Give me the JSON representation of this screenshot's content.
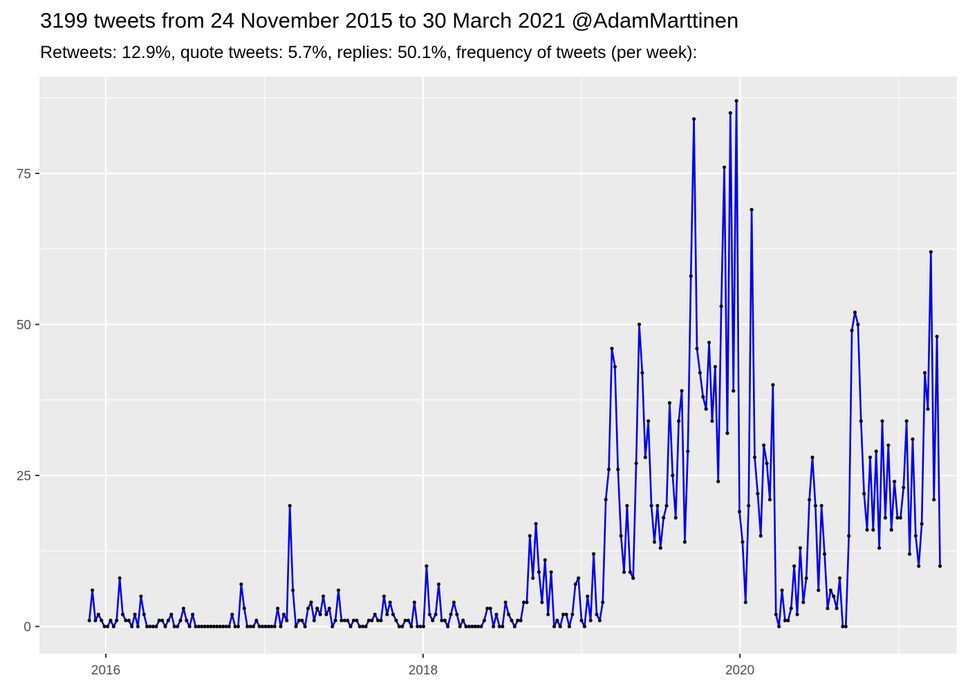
{
  "chart_data": {
    "type": "line",
    "title": "3199 tweets from 24 November 2015 to 30 March 2021 @AdamMarttinen",
    "subtitle": "Retweets: 12.9%, quote tweets: 5.7%, replies: 50.1%, frequency of tweets (per week):",
    "xlabel": "",
    "ylabel": "",
    "x_unit": "date (weekly)",
    "x_start": "2015-11-24",
    "x_step_days": 7,
    "xlim": [
      "2015-08-01",
      "2021-05-15"
    ],
    "ylim": [
      -4.5,
      91
    ],
    "x_ticks": [
      {
        "label": "2016",
        "date": "2016-01-01"
      },
      {
        "label": "2018",
        "date": "2018-01-01"
      },
      {
        "label": "2020",
        "date": "2020-01-01"
      }
    ],
    "x_minor_ticks": [
      "2017-01-01",
      "2019-01-01",
      "2021-01-01"
    ],
    "y_ticks": [
      0,
      25,
      50,
      75
    ],
    "y_minor_ticks": [
      12.5,
      37.5,
      62.5,
      87.5
    ],
    "grid": true,
    "legend": "none",
    "colors": {
      "panel_background": "#ebebeb",
      "grid": "#ffffff",
      "line": "#0000ee",
      "points": "#000000"
    },
    "series": [
      {
        "values": [
          1,
          6,
          1,
          2,
          1,
          0,
          0,
          1,
          0,
          1,
          8,
          2,
          1,
          1,
          0,
          2,
          0,
          5,
          2,
          0,
          0,
          0,
          0,
          1,
          1,
          0,
          1,
          2,
          0,
          0,
          1,
          3,
          1,
          0,
          2,
          0,
          0,
          0,
          0,
          0,
          0,
          0,
          0,
          0,
          0,
          0,
          0,
          2,
          0,
          0,
          7,
          3,
          0,
          0,
          0,
          1,
          0,
          0,
          0,
          0,
          0,
          0,
          3,
          0,
          2,
          1,
          20,
          6,
          0,
          1,
          1,
          0,
          3,
          4,
          1,
          3,
          2,
          5,
          2,
          3,
          0,
          1,
          6,
          1,
          1,
          1,
          0,
          1,
          1,
          0,
          0,
          0,
          1,
          1,
          2,
          1,
          1,
          5,
          2,
          4,
          2,
          1,
          0,
          0,
          1,
          1,
          0,
          4,
          0,
          0,
          0,
          10,
          2,
          1,
          2,
          7,
          1,
          1,
          0,
          2,
          4,
          2,
          0,
          1,
          0,
          0,
          0,
          0,
          0,
          0,
          1,
          3,
          3,
          0,
          2,
          0,
          0,
          4,
          2,
          1,
          0,
          1,
          1,
          4,
          4,
          15,
          8,
          17,
          9,
          4,
          11,
          2,
          9,
          0,
          1,
          0,
          2,
          2,
          0,
          2,
          7,
          8,
          1,
          0,
          5,
          1,
          12,
          2,
          1,
          4,
          21,
          26,
          46,
          43,
          26,
          15,
          9,
          20,
          9,
          8,
          27,
          50,
          42,
          28,
          34,
          20,
          14,
          20,
          13,
          18,
          20,
          37,
          25,
          18,
          34,
          39,
          14,
          29,
          58,
          84,
          46,
          42,
          38,
          36,
          47,
          34,
          43,
          24,
          53,
          76,
          32,
          85,
          39,
          87,
          19,
          14,
          4,
          20,
          69,
          28,
          22,
          15,
          30,
          27,
          21,
          40,
          2,
          0,
          6,
          1,
          1,
          3,
          10,
          2,
          13,
          4,
          8,
          21,
          28,
          20,
          6,
          20,
          12,
          3,
          6,
          5,
          3,
          8,
          0,
          0,
          15,
          49,
          52,
          50,
          34,
          22,
          16,
          28,
          16,
          29,
          13,
          34,
          18,
          30,
          16,
          24,
          18,
          18,
          23,
          34,
          12,
          31,
          15,
          10,
          17,
          42,
          36,
          62,
          21,
          48,
          10
        ]
      }
    ]
  }
}
